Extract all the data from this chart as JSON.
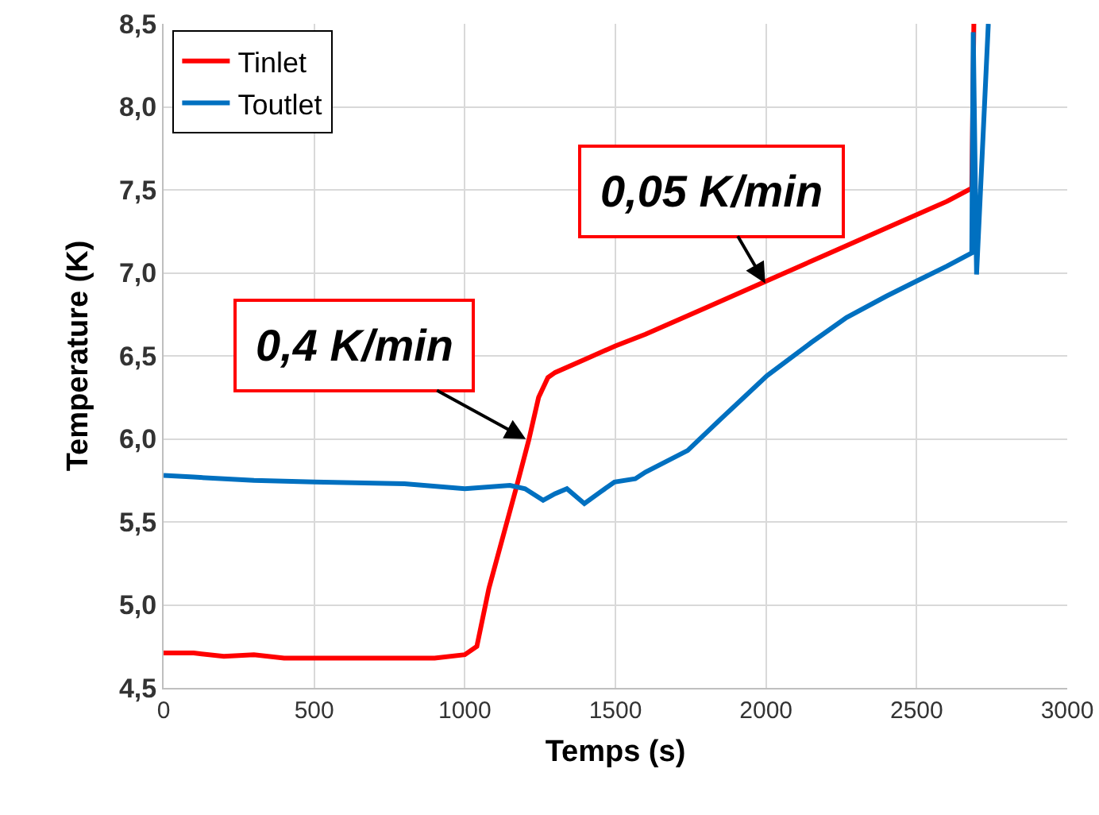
{
  "chart_data": {
    "type": "line",
    "xlabel": "Temps (s)",
    "ylabel": "Temperature (K)",
    "xlim": [
      0,
      3000
    ],
    "xticks": [
      0,
      500,
      1000,
      1500,
      2000,
      2500,
      3000
    ],
    "ylim": [
      4.5,
      8.5
    ],
    "yticks": [
      {
        "value": 4.5,
        "label": "4,5"
      },
      {
        "value": 5,
        "label": "5,0"
      },
      {
        "value": 5.5,
        "label": "5,5"
      },
      {
        "value": 6,
        "label": "6,0"
      },
      {
        "value": 6.5,
        "label": "6,5"
      },
      {
        "value": 7,
        "label": "7,0"
      },
      {
        "value": 7.5,
        "label": "7,5"
      },
      {
        "value": 8,
        "label": "8,0"
      },
      {
        "value": 8.5,
        "label": "8,5"
      }
    ],
    "grid": true,
    "legend": "top left",
    "marker": "none",
    "line_style": "solid",
    "series": [
      {
        "name": "Tinlet",
        "color": "#ff0000",
        "x": [
          0,
          100,
          200,
          300,
          400,
          500,
          600,
          700,
          800,
          900,
          1000,
          1040,
          1080,
          1128,
          1170,
          1212,
          1245,
          1276,
          1300,
          1400,
          1500,
          1600,
          1800,
          2000,
          2200,
          2400,
          2600,
          2683,
          2690
        ],
        "values": [
          4.71,
          4.71,
          4.69,
          4.7,
          4.68,
          4.68,
          4.68,
          4.68,
          4.68,
          4.68,
          4.7,
          4.75,
          5.1,
          5.42,
          5.7,
          5.99,
          6.25,
          6.37,
          6.4,
          6.48,
          6.56,
          6.63,
          6.79,
          6.95,
          7.11,
          7.27,
          7.43,
          7.51,
          8.5
        ]
      },
      {
        "name": "Toutlet",
        "color": "#0070c0",
        "x": [
          0,
          100,
          300,
          500,
          800,
          1000,
          1150,
          1200,
          1260,
          1300,
          1339,
          1397,
          1450,
          1497,
          1566,
          1600,
          1740,
          1850,
          2003,
          2150,
          2267,
          2400,
          2499,
          2600,
          2683,
          2688,
          2699,
          2738
        ],
        "values": [
          5.78,
          5.77,
          5.75,
          5.74,
          5.73,
          5.7,
          5.72,
          5.7,
          5.63,
          5.67,
          5.7,
          5.61,
          5.68,
          5.74,
          5.76,
          5.8,
          5.93,
          6.12,
          6.38,
          6.58,
          6.73,
          6.86,
          6.95,
          7.04,
          7.12,
          8.45,
          6.99,
          8.5
        ]
      }
    ],
    "annotations": [
      {
        "text": "0,4 K/min",
        "x": 1212,
        "y": 5.99
      },
      {
        "text": "0,05 K/min",
        "x": 2003,
        "y": 6.92
      }
    ]
  }
}
